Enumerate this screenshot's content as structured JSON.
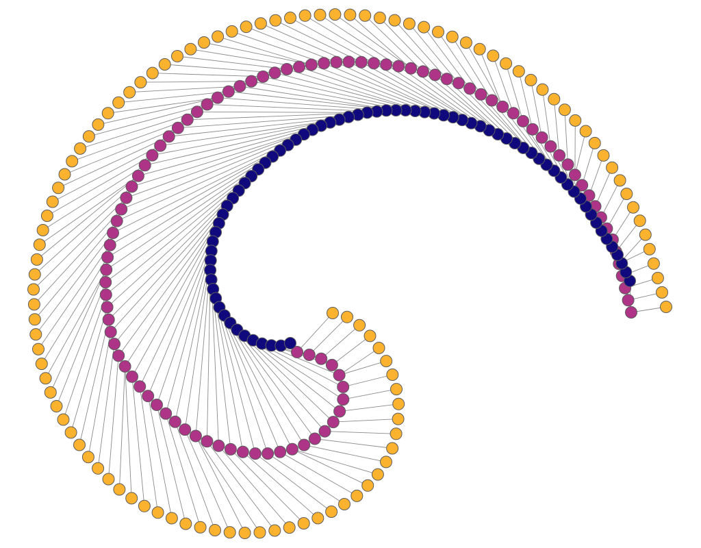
{
  "graph": {
    "layout": "spiral",
    "node_colors": {
      "core": "#10097e",
      "middle": "#ae3487",
      "outer": "#fbb32f"
    },
    "node_outline": "#5c5c5c",
    "edge_color": "#8a8a8a",
    "background": "#ffffff",
    "rings": [
      {
        "name": "core",
        "count": 74,
        "color_key": "core"
      },
      {
        "name": "middle",
        "count": 98,
        "color_key": "middle"
      },
      {
        "name": "outer",
        "count": 110,
        "color_key": "outer"
      }
    ]
  }
}
